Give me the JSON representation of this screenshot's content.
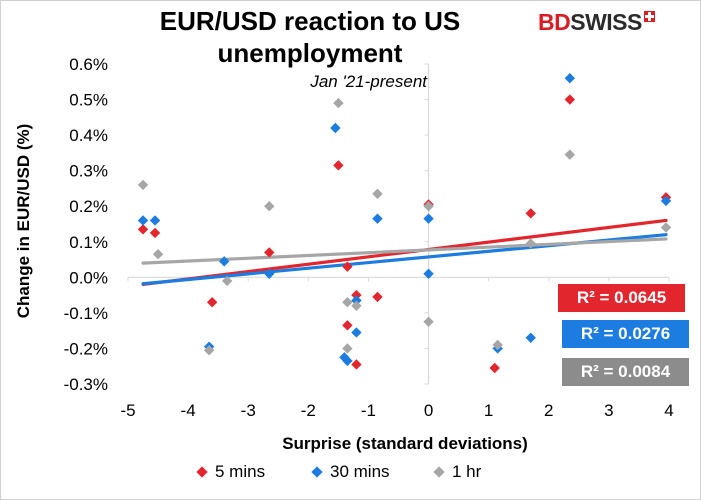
{
  "title_line1": "EUR/USD reaction to US",
  "title_line2": "unemployment",
  "subtitle": "Jan '21-present",
  "logo": {
    "part1": "BD",
    "part2": "SWISS"
  },
  "chart_data": {
    "type": "scatter",
    "title": "EUR/USD reaction to US unemployment",
    "subtitle": "Jan '21-present",
    "xlabel": "Surprise (standard deviations)",
    "ylabel": "Change in EUR/USD  (%)",
    "xlim": [
      -5,
      4
    ],
    "ylim": [
      -0.3,
      0.6
    ],
    "xticks": [
      -5,
      -4,
      -3,
      -2,
      -1,
      0,
      1,
      2,
      3,
      4
    ],
    "yticks": [
      0.6,
      0.5,
      0.4,
      0.3,
      0.2,
      0.1,
      0.0,
      -0.1,
      -0.2,
      -0.3
    ],
    "xtick_labels": [
      "-5",
      "-4",
      "-3",
      "-2",
      "-1",
      "0",
      "1",
      "2",
      "3",
      "4"
    ],
    "ytick_labels": [
      "0.6%",
      "0.5%",
      "0.4%",
      "0.3%",
      "0.2%",
      "0.1%",
      "0.0%",
      "-0.1%",
      "-0.2%",
      "-0.3%"
    ],
    "grid": false,
    "legend_position": "bottom",
    "series": [
      {
        "name": "5 mins",
        "color": "#e3262d",
        "trendline": {
          "x": [
            -4.75,
            3.95
          ],
          "y": [
            -0.02,
            0.16
          ]
        },
        "r2_label": "R² = 0.0645",
        "points": [
          {
            "x": -4.75,
            "y": 0.135
          },
          {
            "x": -4.55,
            "y": 0.125
          },
          {
            "x": -3.6,
            "y": -0.07
          },
          {
            "x": -2.65,
            "y": 0.07
          },
          {
            "x": -1.5,
            "y": 0.315
          },
          {
            "x": -1.35,
            "y": 0.03
          },
          {
            "x": -1.35,
            "y": -0.135
          },
          {
            "x": -1.2,
            "y": -0.05
          },
          {
            "x": -1.2,
            "y": -0.245
          },
          {
            "x": -0.85,
            "y": -0.055
          },
          {
            "x": 0.0,
            "y": 0.205
          },
          {
            "x": 1.1,
            "y": -0.255
          },
          {
            "x": 1.7,
            "y": 0.18
          },
          {
            "x": 2.35,
            "y": 0.5
          },
          {
            "x": 3.95,
            "y": 0.225
          }
        ]
      },
      {
        "name": "30 mins",
        "color": "#1c7ce0",
        "trendline": {
          "x": [
            -4.75,
            3.95
          ],
          "y": [
            -0.018,
            0.12
          ]
        },
        "r2_label": "R² = 0.0276",
        "points": [
          {
            "x": -4.75,
            "y": 0.16
          },
          {
            "x": -4.55,
            "y": 0.16
          },
          {
            "x": -3.65,
            "y": -0.195
          },
          {
            "x": -3.4,
            "y": 0.045
          },
          {
            "x": -2.65,
            "y": 0.01
          },
          {
            "x": -1.55,
            "y": 0.42
          },
          {
            "x": -1.4,
            "y": -0.225
          },
          {
            "x": -1.35,
            "y": -0.235
          },
          {
            "x": -1.2,
            "y": -0.065
          },
          {
            "x": -1.2,
            "y": -0.155
          },
          {
            "x": -0.85,
            "y": 0.165
          },
          {
            "x": 0.0,
            "y": 0.165
          },
          {
            "x": 0.0,
            "y": 0.01
          },
          {
            "x": 1.15,
            "y": -0.2
          },
          {
            "x": 1.7,
            "y": -0.17
          },
          {
            "x": 2.35,
            "y": 0.56
          },
          {
            "x": 3.95,
            "y": 0.215
          }
        ]
      },
      {
        "name": "1 hr",
        "color": "#a6a6a6",
        "trendline": {
          "x": [
            -4.75,
            3.95
          ],
          "y": [
            0.04,
            0.108
          ]
        },
        "r2_label": "R² = 0.0084",
        "points": [
          {
            "x": -4.75,
            "y": 0.26
          },
          {
            "x": -4.5,
            "y": 0.065
          },
          {
            "x": -3.65,
            "y": -0.205
          },
          {
            "x": -3.35,
            "y": -0.01
          },
          {
            "x": -2.65,
            "y": 0.2
          },
          {
            "x": -1.5,
            "y": 0.49
          },
          {
            "x": -1.35,
            "y": -0.07
          },
          {
            "x": -1.35,
            "y": -0.2
          },
          {
            "x": -1.2,
            "y": -0.08
          },
          {
            "x": -0.85,
            "y": 0.235
          },
          {
            "x": 0.0,
            "y": 0.2
          },
          {
            "x": 0.0,
            "y": -0.125
          },
          {
            "x": 1.15,
            "y": -0.19
          },
          {
            "x": 1.7,
            "y": 0.095
          },
          {
            "x": 2.35,
            "y": 0.345
          },
          {
            "x": 3.95,
            "y": 0.14
          }
        ]
      }
    ]
  }
}
